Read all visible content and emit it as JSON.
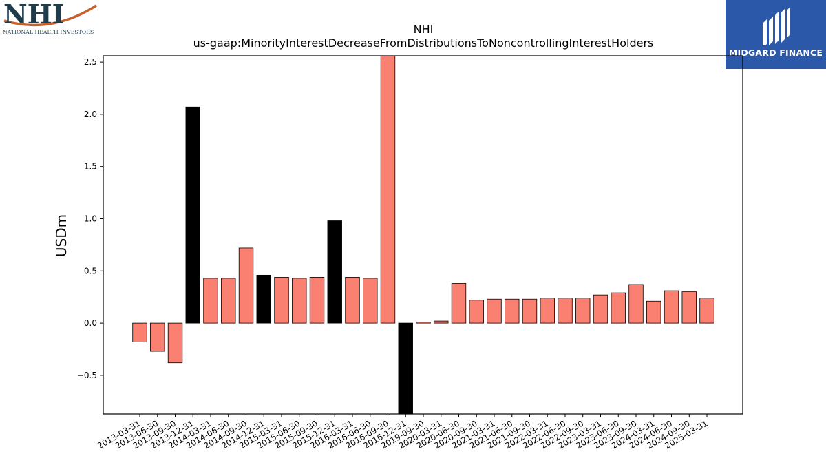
{
  "logos": {
    "left_name": "NHI",
    "left_subtitle": "NATIONAL HEALTH INVESTORS",
    "right_name": "MIDGARD FINANCE"
  },
  "chart_data": {
    "type": "bar",
    "title": "NHI",
    "subtitle": "us-gaap:MinorityInterestDecreaseFromDistributionsToNoncontrollingInterestHolders",
    "xlabel": "",
    "ylabel": "USDm",
    "ylim": [
      -0.87,
      2.56
    ],
    "yticks": [
      -0.5,
      0.0,
      0.5,
      1.0,
      1.5,
      2.0,
      2.5
    ],
    "ytick_labels": [
      "−0.5",
      "0.0",
      "0.5",
      "1.0",
      "1.5",
      "2.0",
      "2.5"
    ],
    "grid": false,
    "colors": {
      "normal": "#fa8072",
      "highlight": "#000000",
      "edge": "#000000"
    },
    "categories": [
      "2013-03-31",
      "2013-06-30",
      "2013-09-30",
      "2013-12-31",
      "2014-03-31",
      "2014-06-30",
      "2014-09-30",
      "2014-12-31",
      "2015-03-31",
      "2015-06-30",
      "2015-09-30",
      "2015-12-31",
      "2016-03-31",
      "2016-06-30",
      "2016-09-30",
      "2016-12-31",
      "2019-09-30",
      "2020-03-31",
      "2020-06-30",
      "2020-09-30",
      "2021-03-31",
      "2021-06-30",
      "2021-09-30",
      "2022-03-31",
      "2022-06-30",
      "2022-09-30",
      "2023-03-31",
      "2023-06-30",
      "2023-09-30",
      "2024-03-31",
      "2024-06-30",
      "2024-09-30",
      "2025-03-31"
    ],
    "values": [
      -0.18,
      -0.27,
      -0.38,
      2.07,
      0.43,
      0.43,
      0.72,
      0.46,
      0.44,
      0.43,
      0.44,
      0.98,
      0.44,
      0.43,
      2.6,
      -0.9,
      0.01,
      0.02,
      0.38,
      0.22,
      0.23,
      0.23,
      0.23,
      0.24,
      0.24,
      0.24,
      0.27,
      0.29,
      0.37,
      0.21,
      0.31,
      0.3,
      0.24
    ],
    "highlighted": [
      false,
      false,
      false,
      true,
      false,
      false,
      false,
      true,
      false,
      false,
      false,
      true,
      false,
      false,
      false,
      true,
      false,
      false,
      false,
      false,
      false,
      false,
      false,
      false,
      false,
      false,
      false,
      false,
      false,
      false,
      false,
      false,
      false
    ]
  }
}
